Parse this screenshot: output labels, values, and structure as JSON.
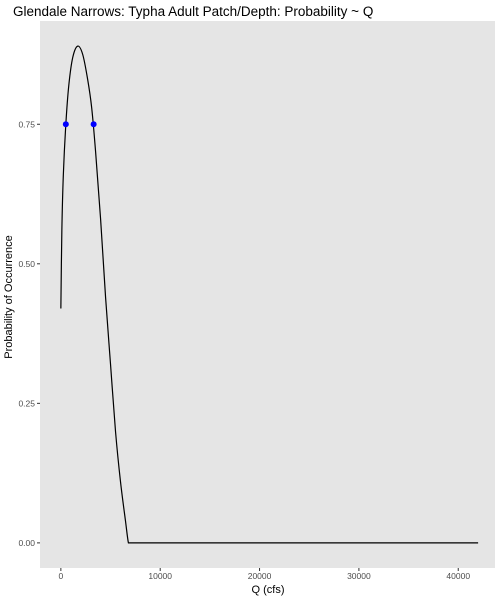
{
  "chart_data": {
    "type": "line",
    "title": "Glendale Narrows: Typha Adult Patch/Depth: Probability ~ Q",
    "xlabel": "Q (cfs)",
    "ylabel": "Probability of Occurrence",
    "xlim": [
      -2100,
      43700
    ],
    "ylim": [
      -0.045,
      0.935
    ],
    "x_ticks": [
      0,
      10000,
      20000,
      30000,
      40000
    ],
    "x_tick_labels": [
      "0",
      "10000",
      "20000",
      "30000",
      "40000"
    ],
    "y_ticks": [
      0.0,
      0.25,
      0.5,
      0.75
    ],
    "y_tick_labels": [
      "0.00",
      "0.25",
      "0.50",
      "0.75"
    ],
    "grid": false,
    "background": "#e5e5e5",
    "series": [
      {
        "line_color": "#000000",
        "x": [
          0,
          100,
          250,
          500,
          800,
          1200,
          1700,
          2200,
          2700,
          3100,
          3500,
          4000,
          4500,
          5000,
          5500,
          6000,
          6500,
          6800,
          7000,
          42000
        ],
        "y": [
          0.42,
          0.56,
          0.66,
          0.75,
          0.82,
          0.87,
          0.89,
          0.875,
          0.83,
          0.78,
          0.7,
          0.58,
          0.44,
          0.32,
          0.2,
          0.11,
          0.04,
          0.0,
          0.0,
          0.0
        ]
      }
    ],
    "points": {
      "color": "#0000ff",
      "x": [
        500,
        3300
      ],
      "y": [
        0.75,
        0.75
      ]
    }
  }
}
